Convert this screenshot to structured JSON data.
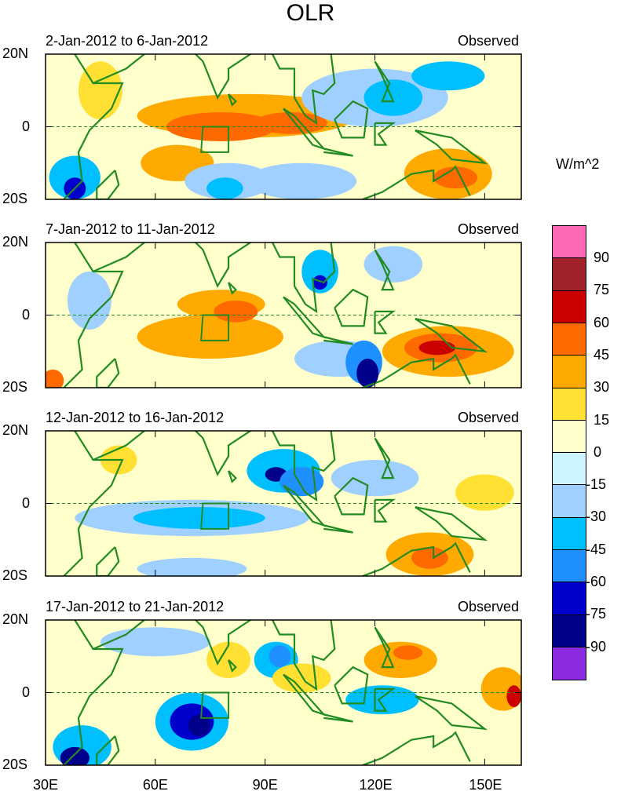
{
  "title": "OLR",
  "units": "W/m^2",
  "chart_data": {
    "type": "heatmap",
    "xlim": [
      30,
      160
    ],
    "ylim": [
      -20,
      20
    ],
    "x_ticks": [
      "30E",
      "60E",
      "90E",
      "120E",
      "150E"
    ],
    "y_ticks": [
      "20N",
      "0",
      "20S"
    ],
    "colorbar": {
      "labels": [
        "90",
        "75",
        "60",
        "45",
        "30",
        "15",
        "0",
        "-15",
        "-30",
        "-45",
        "-60",
        "-75",
        "-90"
      ],
      "colors": [
        "#ff69b4",
        "#a0232a",
        "#cc0000",
        "#ff6a00",
        "#ffaa00",
        "#ffe033",
        "#ffffcc",
        "#ccf5ff",
        "#a0d0ff",
        "#00bfff",
        "#1e90ff",
        "#0000cd",
        "#00008b",
        "#8a2be2"
      ]
    },
    "panels": [
      {
        "period": "2-Jan-2012 to 6-Jan-2012",
        "label": "Observed",
        "anomalies": [
          [
            85,
            3,
            30,
            6,
            30
          ],
          [
            78,
            0,
            15,
            4,
            45
          ],
          [
            97,
            1,
            10,
            3,
            45
          ],
          [
            66,
            -10,
            10,
            5,
            30
          ],
          [
            38,
            -14,
            7,
            6,
            -30
          ],
          [
            38,
            -17,
            3,
            3,
            -60
          ],
          [
            80,
            -15,
            12,
            5,
            -15
          ],
          [
            79,
            -17,
            5,
            3,
            -30
          ],
          [
            45,
            10,
            6,
            8,
            15
          ],
          [
            100,
            -15,
            15,
            5,
            -15
          ],
          [
            120,
            8,
            20,
            8,
            -15
          ],
          [
            125,
            8,
            8,
            5,
            -30
          ],
          [
            140,
            -13,
            12,
            7,
            30
          ],
          [
            142,
            -14,
            6,
            3,
            45
          ],
          [
            140,
            14,
            10,
            4,
            -30
          ]
        ]
      },
      {
        "period": "7-Jan-2012 to 11-Jan-2012",
        "label": "Observed",
        "anomalies": [
          [
            75,
            -6,
            20,
            6,
            30
          ],
          [
            78,
            3,
            12,
            4,
            30
          ],
          [
            82,
            1,
            6,
            3,
            45
          ],
          [
            110,
            -12,
            12,
            5,
            -15
          ],
          [
            117,
            -13,
            5,
            6,
            -45
          ],
          [
            118,
            -16,
            3,
            4,
            -75
          ],
          [
            105,
            12,
            5,
            6,
            -30
          ],
          [
            105,
            9,
            2,
            2,
            -60
          ],
          [
            140,
            -10,
            18,
            7,
            30
          ],
          [
            138,
            -9,
            10,
            4,
            45
          ],
          [
            137,
            -9,
            5,
            2,
            60
          ],
          [
            42,
            4,
            6,
            8,
            -15
          ],
          [
            125,
            14,
            8,
            5,
            -15
          ],
          [
            32,
            -18,
            3,
            3,
            45
          ]
        ]
      },
      {
        "period": "12-Jan-2012 to 16-Jan-2012",
        "label": "Observed",
        "anomalies": [
          [
            70,
            -4,
            32,
            5,
            -15
          ],
          [
            72,
            -4,
            18,
            3,
            -30
          ],
          [
            95,
            9,
            10,
            6,
            -30
          ],
          [
            93,
            8,
            3,
            2,
            -75
          ],
          [
            100,
            6,
            6,
            4,
            -45
          ],
          [
            120,
            7,
            12,
            5,
            -15
          ],
          [
            135,
            -14,
            12,
            6,
            30
          ],
          [
            135,
            -15,
            5,
            3,
            45
          ],
          [
            150,
            3,
            8,
            5,
            15
          ],
          [
            70,
            -18,
            15,
            3,
            -15
          ],
          [
            50,
            12,
            5,
            4,
            15
          ]
        ]
      },
      {
        "period": "17-Jan-2012 to 21-Jan-2012",
        "label": "Observed",
        "anomalies": [
          [
            70,
            -8,
            10,
            8,
            -30
          ],
          [
            70,
            -8,
            6,
            5,
            -60
          ],
          [
            72,
            -9,
            3,
            3,
            -75
          ],
          [
            40,
            -15,
            8,
            6,
            -30
          ],
          [
            38,
            -18,
            4,
            3,
            -75
          ],
          [
            93,
            9,
            6,
            5,
            -30
          ],
          [
            94,
            10,
            3,
            3,
            -45
          ],
          [
            127,
            9,
            10,
            5,
            30
          ],
          [
            129,
            11,
            4,
            2,
            45
          ],
          [
            122,
            -2,
            10,
            4,
            -30
          ],
          [
            155,
            1,
            6,
            6,
            30
          ],
          [
            158,
            -1,
            2,
            3,
            60
          ],
          [
            80,
            9,
            6,
            5,
            15
          ],
          [
            100,
            4,
            8,
            4,
            15
          ],
          [
            60,
            14,
            15,
            4,
            -15
          ]
        ]
      }
    ]
  }
}
